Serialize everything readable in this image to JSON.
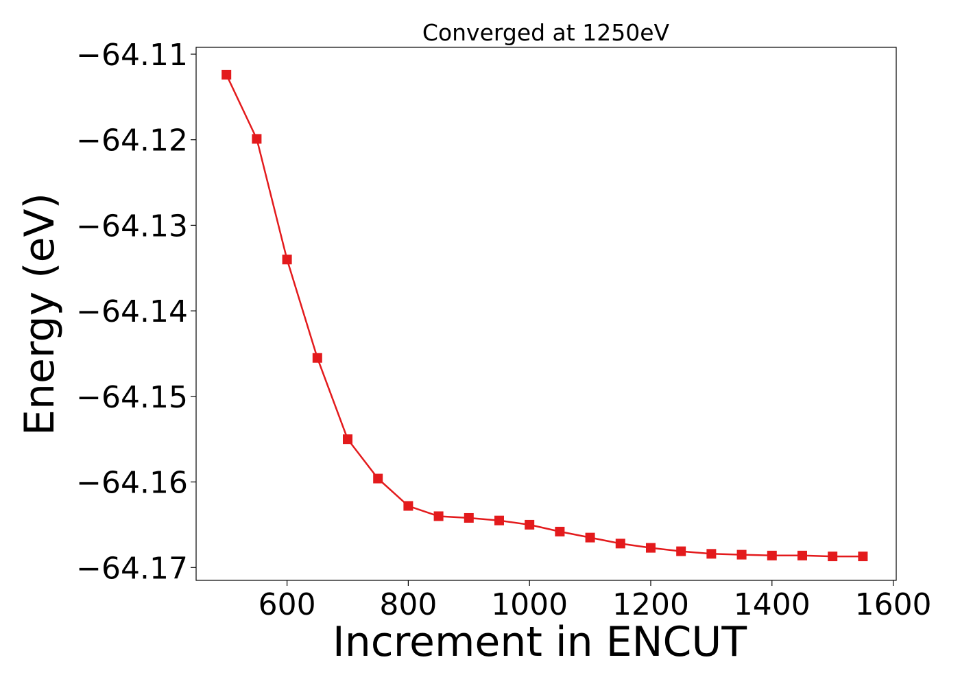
{
  "chart_data": {
    "type": "line",
    "title": "Converged at 1250eV",
    "xlabel": "Increment in ENCUT",
    "ylabel": "Energy (eV)",
    "xlim": [
      450,
      1605
    ],
    "ylim": [
      -64.1715,
      -64.1092
    ],
    "xticks": [
      600,
      800,
      1000,
      1200,
      1400,
      1600
    ],
    "yticks": [
      -64.11,
      -64.12,
      -64.13,
      -64.14,
      -64.15,
      -64.16,
      -64.17
    ],
    "xtick_labels": [
      "600",
      "800",
      "1000",
      "1200",
      "1400",
      "1600"
    ],
    "ytick_labels": [
      "−64.11",
      "−64.12",
      "−64.13",
      "−64.14",
      "−64.15",
      "−64.16",
      "−64.17"
    ],
    "grid": false,
    "legend": false,
    "series": [
      {
        "color": "#e31a1c",
        "marker": "square",
        "x": [
          500,
          550,
          600,
          650,
          700,
          750,
          800,
          850,
          900,
          950,
          1000,
          1050,
          1100,
          1150,
          1200,
          1250,
          1300,
          1350,
          1400,
          1450,
          1500,
          1550
        ],
        "y": [
          -64.1124,
          -64.1199,
          -64.134,
          -64.1455,
          -64.155,
          -64.1596,
          -64.1628,
          -64.164,
          -64.1642,
          -64.1645,
          -64.165,
          -64.1658,
          -64.1665,
          -64.1672,
          -64.1677,
          -64.1681,
          -64.1684,
          -64.1685,
          -64.1686,
          -64.1686,
          -64.1687,
          -64.1687
        ]
      }
    ]
  }
}
